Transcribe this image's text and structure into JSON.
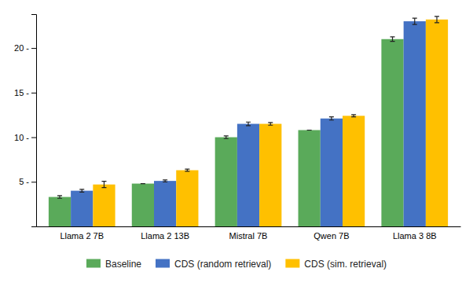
{
  "chart_data": {
    "type": "bar",
    "categories": [
      "Llama 2 7B",
      "Llama 2 13B",
      "Mistral 7B",
      "Qwen 7B",
      "Llama 3 8B"
    ],
    "series": [
      {
        "name": "Baseline",
        "color": "#5aaa5a",
        "values": [
          3.3,
          4.8,
          10.0,
          10.8,
          21.0
        ],
        "errors": [
          0.15,
          0.0,
          0.15,
          0.0,
          0.25
        ]
      },
      {
        "name": "CDS (random retrieval)",
        "color": "#4472c4",
        "values": [
          4.0,
          5.1,
          11.5,
          12.1,
          23.0
        ],
        "errors": [
          0.15,
          0.12,
          0.2,
          0.18,
          0.35
        ]
      },
      {
        "name": "CDS (sim. retrieval)",
        "color": "#ffc000",
        "values": [
          4.7,
          6.3,
          11.5,
          12.4,
          23.2
        ],
        "errors": [
          0.35,
          0.12,
          0.15,
          0.12,
          0.35
        ]
      }
    ],
    "ylim": [
      0,
      23.8
    ],
    "yticks": [
      {
        "value": 5,
        "label": "5 -"
      },
      {
        "value": 10,
        "label": "10 -"
      },
      {
        "value": 15,
        "label": "15 -"
      },
      {
        "value": 20,
        "label": "20 -"
      }
    ],
    "grid": false,
    "legend": "bottom"
  }
}
